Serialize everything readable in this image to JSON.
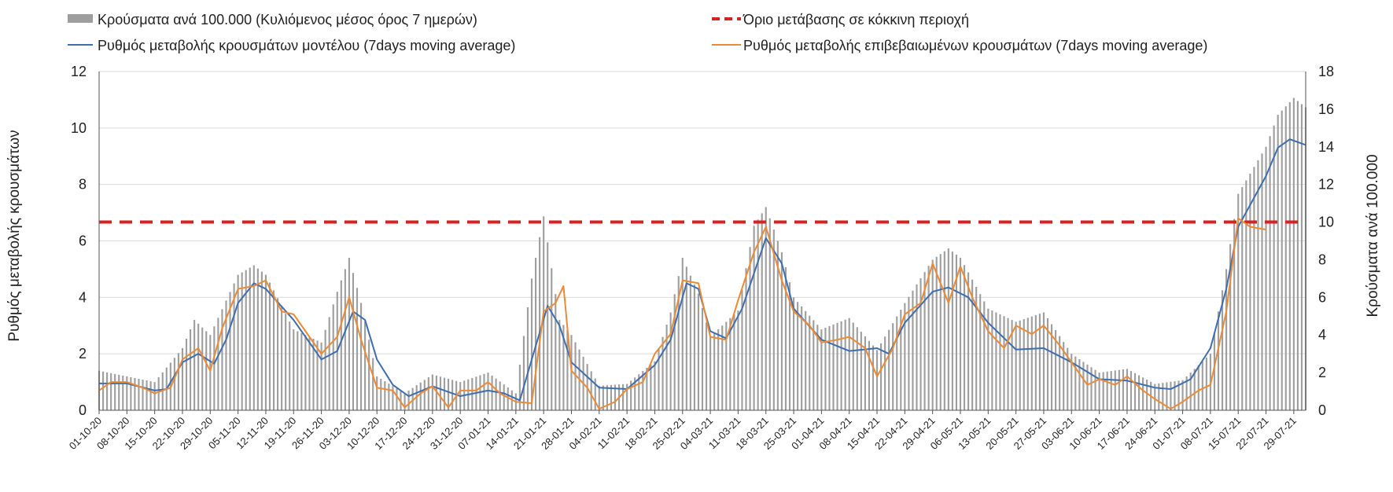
{
  "chart_data": {
    "type": "bar",
    "colors": {
      "bars": "#9e9e9e",
      "model_line": "#3e6eb0",
      "confirmed_line": "#ec8a35",
      "threshold": "#d62222",
      "grid": "#d9d9d9",
      "axis": "#555555"
    },
    "legend": {
      "position": "top",
      "entries": [
        "Κρούσματα ανά 100.000 (Κυλιόμενος μέσος όρος 7 ημερών)",
        "Όριο μετάβασης σε κόκκινη περιοχή",
        "Ρυθμός μεταβολής κρουσμάτων μοντέλου (7days moving average)",
        "Ρυθμός μεταβολής επιβεβαιωμένων κρουσμάτων (7days moving average)"
      ]
    },
    "y_left": {
      "label": "Ρυθμός μεταβολής κρουσμάτων",
      "range": [
        0,
        12
      ],
      "ticks": [
        "0",
        "2",
        "4",
        "6",
        "8",
        "10",
        "12"
      ]
    },
    "y_right": {
      "label": "Κρούσματα ανά 100.000",
      "range": [
        0,
        18
      ],
      "ticks": [
        "0",
        "2",
        "4",
        "6",
        "8",
        "10",
        "12",
        "14",
        "16",
        "18"
      ]
    },
    "grid": true,
    "x_start_date": "2020-10-01",
    "x_end_date": "2021-08-01",
    "x_tick_labels": [
      "01-10-20",
      "08-10-20",
      "15-10-20",
      "22-10-20",
      "29-10-20",
      "05-11-20",
      "12-11-20",
      "19-11-20",
      "26-11-20",
      "03-12-20",
      "10-12-20",
      "17-12-20",
      "24-12-20",
      "31-12-20",
      "07-01-21",
      "14-01-21",
      "21-01-21",
      "28-01-21",
      "04-02-21",
      "11-02-21",
      "18-02-21",
      "25-02-21",
      "04-03-21",
      "11-03-21",
      "18-03-21",
      "25-03-21",
      "01-04-21",
      "08-04-21",
      "15-04-21",
      "22-04-21",
      "29-04-21",
      "06-05-21",
      "13-05-21",
      "20-05-21",
      "27-05-21",
      "03-06-21",
      "10-06-21",
      "17-06-21",
      "24-06-21",
      "01-07-21",
      "08-07-21",
      "15-07-21",
      "22-07-21",
      "29-07-21"
    ],
    "threshold_value": 10,
    "series": [
      {
        "name": "Κρούσματα ανά 100.000 (Κυλιόμενος μέσος όρος 7 ημερών)",
        "axis": "right",
        "type": "bar",
        "points": [
          [
            "2020-10-01",
            2.1
          ],
          [
            "2020-10-08",
            1.8
          ],
          [
            "2020-10-15",
            1.5
          ],
          [
            "2020-10-22",
            3.3
          ],
          [
            "2020-10-25",
            4.8
          ],
          [
            "2020-10-29",
            4.0
          ],
          [
            "2020-11-05",
            7.2
          ],
          [
            "2020-11-09",
            7.7
          ],
          [
            "2020-11-12",
            7.2
          ],
          [
            "2020-11-19",
            4.3
          ],
          [
            "2020-11-26",
            3.6
          ],
          [
            "2020-11-30",
            6.3
          ],
          [
            "2020-12-03",
            8.1
          ],
          [
            "2020-12-06",
            5.7
          ],
          [
            "2020-12-10",
            1.8
          ],
          [
            "2020-12-17",
            0.9
          ],
          [
            "2020-12-24",
            1.9
          ],
          [
            "2020-12-31",
            1.5
          ],
          [
            "2021-01-07",
            2.0
          ],
          [
            "2021-01-14",
            0.9
          ],
          [
            "2021-01-18",
            7.0
          ],
          [
            "2021-01-21",
            10.3
          ],
          [
            "2021-01-25",
            4.8
          ],
          [
            "2021-01-28",
            4.0
          ],
          [
            "2021-02-04",
            1.3
          ],
          [
            "2021-02-11",
            1.4
          ],
          [
            "2021-02-18",
            2.6
          ],
          [
            "2021-02-22",
            5.2
          ],
          [
            "2021-02-25",
            8.1
          ],
          [
            "2021-03-01",
            6.2
          ],
          [
            "2021-03-04",
            3.9
          ],
          [
            "2021-03-11",
            5.3
          ],
          [
            "2021-03-15",
            9.8
          ],
          [
            "2021-03-18",
            10.8
          ],
          [
            "2021-03-22",
            8.4
          ],
          [
            "2021-03-25",
            6.0
          ],
          [
            "2021-04-01",
            4.3
          ],
          [
            "2021-04-08",
            4.9
          ],
          [
            "2021-04-15",
            3.2
          ],
          [
            "2021-04-22",
            5.7
          ],
          [
            "2021-04-29",
            8.0
          ],
          [
            "2021-05-03",
            8.6
          ],
          [
            "2021-05-06",
            8.1
          ],
          [
            "2021-05-13",
            5.4
          ],
          [
            "2021-05-20",
            4.7
          ],
          [
            "2021-05-27",
            5.2
          ],
          [
            "2021-06-03",
            3.0
          ],
          [
            "2021-06-10",
            2.0
          ],
          [
            "2021-06-17",
            2.2
          ],
          [
            "2021-06-24",
            1.4
          ],
          [
            "2021-07-01",
            1.6
          ],
          [
            "2021-07-08",
            3.0
          ],
          [
            "2021-07-12",
            7.5
          ],
          [
            "2021-07-15",
            11.5
          ],
          [
            "2021-07-22",
            14.0
          ],
          [
            "2021-07-25",
            15.7
          ],
          [
            "2021-07-29",
            16.6
          ],
          [
            "2021-08-01",
            16.1
          ]
        ]
      },
      {
        "name": "Ρυθμός μεταβολής κρουσμάτων μοντέλου (7days moving average)",
        "axis": "left",
        "type": "line",
        "points": [
          [
            "2020-10-01",
            0.95
          ],
          [
            "2020-10-08",
            0.95
          ],
          [
            "2020-10-15",
            0.7
          ],
          [
            "2020-10-18",
            0.75
          ],
          [
            "2020-10-22",
            1.7
          ],
          [
            "2020-10-26",
            2.0
          ],
          [
            "2020-10-30",
            1.65
          ],
          [
            "2020-11-02",
            2.5
          ],
          [
            "2020-11-05",
            3.8
          ],
          [
            "2020-11-09",
            4.5
          ],
          [
            "2020-11-12",
            4.3
          ],
          [
            "2020-11-19",
            3.2
          ],
          [
            "2020-11-26",
            1.8
          ],
          [
            "2020-11-30",
            2.1
          ],
          [
            "2020-12-04",
            3.5
          ],
          [
            "2020-12-07",
            3.2
          ],
          [
            "2020-12-10",
            1.8
          ],
          [
            "2020-12-14",
            0.9
          ],
          [
            "2020-12-18",
            0.5
          ],
          [
            "2020-12-24",
            0.85
          ],
          [
            "2020-12-31",
            0.5
          ],
          [
            "2021-01-07",
            0.7
          ],
          [
            "2021-01-11",
            0.6
          ],
          [
            "2021-01-15",
            0.35
          ],
          [
            "2021-01-18",
            1.8
          ],
          [
            "2021-01-22",
            3.7
          ],
          [
            "2021-01-25",
            3.0
          ],
          [
            "2021-01-28",
            1.7
          ],
          [
            "2021-02-04",
            0.8
          ],
          [
            "2021-02-11",
            0.75
          ],
          [
            "2021-02-18",
            1.6
          ],
          [
            "2021-02-22",
            2.5
          ],
          [
            "2021-02-26",
            4.5
          ],
          [
            "2021-03-01",
            4.3
          ],
          [
            "2021-03-04",
            2.8
          ],
          [
            "2021-03-08",
            2.55
          ],
          [
            "2021-03-12",
            3.6
          ],
          [
            "2021-03-18",
            6.1
          ],
          [
            "2021-03-22",
            5.2
          ],
          [
            "2021-03-25",
            3.6
          ],
          [
            "2021-04-01",
            2.5
          ],
          [
            "2021-04-08",
            2.1
          ],
          [
            "2021-04-15",
            2.2
          ],
          [
            "2021-04-18",
            2.0
          ],
          [
            "2021-04-22",
            3.1
          ],
          [
            "2021-04-29",
            4.2
          ],
          [
            "2021-05-03",
            4.35
          ],
          [
            "2021-05-08",
            4.0
          ],
          [
            "2021-05-13",
            3.1
          ],
          [
            "2021-05-20",
            2.15
          ],
          [
            "2021-05-27",
            2.2
          ],
          [
            "2021-06-03",
            1.7
          ],
          [
            "2021-06-10",
            1.1
          ],
          [
            "2021-06-17",
            1.05
          ],
          [
            "2021-06-24",
            0.8
          ],
          [
            "2021-06-28",
            0.75
          ],
          [
            "2021-07-03",
            1.1
          ],
          [
            "2021-07-08",
            2.2
          ],
          [
            "2021-07-12",
            4.3
          ],
          [
            "2021-07-15",
            6.5
          ],
          [
            "2021-07-22",
            8.3
          ],
          [
            "2021-07-25",
            9.3
          ],
          [
            "2021-07-28",
            9.6
          ],
          [
            "2021-08-01",
            9.4
          ]
        ]
      },
      {
        "name": "Ρυθμός μεταβολής επιβεβαιωμένων κρουσμάτων (7days moving average)",
        "axis": "left",
        "type": "line",
        "points": [
          [
            "2020-10-01",
            0.7
          ],
          [
            "2020-10-04",
            1.0
          ],
          [
            "2020-10-08",
            1.0
          ],
          [
            "2020-10-12",
            0.8
          ],
          [
            "2020-10-15",
            0.6
          ],
          [
            "2020-10-19",
            0.8
          ],
          [
            "2020-10-22",
            1.8
          ],
          [
            "2020-10-26",
            2.2
          ],
          [
            "2020-10-29",
            1.4
          ],
          [
            "2020-11-01",
            2.9
          ],
          [
            "2020-11-05",
            4.3
          ],
          [
            "2020-11-09",
            4.4
          ],
          [
            "2020-11-12",
            4.6
          ],
          [
            "2020-11-16",
            3.5
          ],
          [
            "2020-11-19",
            3.4
          ],
          [
            "2020-11-23",
            2.6
          ],
          [
            "2020-11-26",
            2.0
          ],
          [
            "2020-11-30",
            2.6
          ],
          [
            "2020-12-03",
            4.0
          ],
          [
            "2020-12-06",
            2.5
          ],
          [
            "2020-12-10",
            0.8
          ],
          [
            "2020-12-14",
            0.7
          ],
          [
            "2020-12-17",
            0.1
          ],
          [
            "2020-12-21",
            0.6
          ],
          [
            "2020-12-24",
            0.85
          ],
          [
            "2020-12-28",
            0.1
          ],
          [
            "2020-12-31",
            0.7
          ],
          [
            "2021-01-04",
            0.7
          ],
          [
            "2021-01-07",
            1.0
          ],
          [
            "2021-01-10",
            0.6
          ],
          [
            "2021-01-14",
            0.3
          ],
          [
            "2021-01-18",
            0.25
          ],
          [
            "2021-01-21",
            3.5
          ],
          [
            "2021-01-24",
            3.8
          ],
          [
            "2021-01-26",
            4.4
          ],
          [
            "2021-01-28",
            1.4
          ],
          [
            "2021-02-01",
            0.8
          ],
          [
            "2021-02-04",
            0.05
          ],
          [
            "2021-02-08",
            0.3
          ],
          [
            "2021-02-11",
            0.75
          ],
          [
            "2021-02-15",
            1.0
          ],
          [
            "2021-02-18",
            2.0
          ],
          [
            "2021-02-22",
            2.7
          ],
          [
            "2021-02-25",
            4.6
          ],
          [
            "2021-03-01",
            4.5
          ],
          [
            "2021-03-04",
            2.6
          ],
          [
            "2021-03-08",
            2.5
          ],
          [
            "2021-03-11",
            3.9
          ],
          [
            "2021-03-15",
            5.6
          ],
          [
            "2021-03-18",
            6.5
          ],
          [
            "2021-03-22",
            4.6
          ],
          [
            "2021-03-25",
            3.5
          ],
          [
            "2021-03-29",
            3.0
          ],
          [
            "2021-04-01",
            2.4
          ],
          [
            "2021-04-05",
            2.5
          ],
          [
            "2021-04-08",
            2.6
          ],
          [
            "2021-04-12",
            2.2
          ],
          [
            "2021-04-15",
            1.2
          ],
          [
            "2021-04-19",
            2.2
          ],
          [
            "2021-04-22",
            3.4
          ],
          [
            "2021-04-26",
            3.8
          ],
          [
            "2021-04-29",
            5.2
          ],
          [
            "2021-05-03",
            3.8
          ],
          [
            "2021-05-06",
            5.1
          ],
          [
            "2021-05-09",
            4.0
          ],
          [
            "2021-05-13",
            2.8
          ],
          [
            "2021-05-17",
            2.2
          ],
          [
            "2021-05-20",
            3.0
          ],
          [
            "2021-05-24",
            2.7
          ],
          [
            "2021-05-27",
            3.0
          ],
          [
            "2021-05-31",
            2.3
          ],
          [
            "2021-06-03",
            1.7
          ],
          [
            "2021-06-07",
            0.9
          ],
          [
            "2021-06-10",
            1.1
          ],
          [
            "2021-06-14",
            0.9
          ],
          [
            "2021-06-17",
            1.2
          ],
          [
            "2021-06-21",
            0.7
          ],
          [
            "2021-06-24",
            0.4
          ],
          [
            "2021-06-28",
            0.05
          ],
          [
            "2021-07-01",
            0.3
          ],
          [
            "2021-07-05",
            0.7
          ],
          [
            "2021-07-08",
            0.9
          ],
          [
            "2021-07-12",
            3.5
          ],
          [
            "2021-07-15",
            6.8
          ],
          [
            "2021-07-18",
            6.5
          ],
          [
            "2021-07-22",
            6.4
          ]
        ]
      }
    ]
  }
}
